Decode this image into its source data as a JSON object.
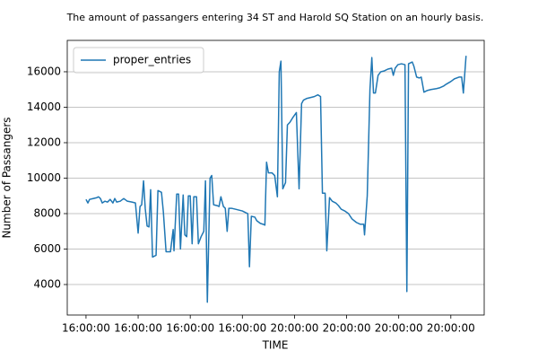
{
  "chart_data": {
    "type": "line",
    "title": "The amount of passangers entering 34 ST and Harold SQ Station on an hourly basis.",
    "xlabel": "TIME",
    "ylabel": "Number of Passangers",
    "x": [
      0,
      0.9,
      1.7,
      3.4,
      5.2,
      6.0,
      6.9,
      7.8,
      9.1,
      10.3,
      11.6,
      12.9,
      13.8,
      14.7,
      16.4,
      18.1,
      19.8,
      22.0,
      23.7,
      25.0,
      25.9,
      26.7,
      27.6,
      28.4,
      29.3,
      30.2,
      31.0,
      31.9,
      33.6,
      34.5,
      36.2,
      37.1,
      38.4,
      40.5,
      41.8,
      42.2,
      43.5,
      44.4,
      45.3,
      46.6,
      47.4,
      48.3,
      49.1,
      50.0,
      50.9,
      51.7,
      53.0,
      53.9,
      55.2,
      56.5,
      57.3,
      58.2,
      59.5,
      60.3,
      61.2,
      62.9,
      63.8,
      64.7,
      65.9,
      66.8,
      67.7,
      68.5,
      69.8,
      71.6,
      73.3,
      75.0,
      76.7,
      77.6,
      78.4,
      79.3,
      81.0,
      81.9,
      83.6,
      84.9,
      85.8,
      86.6,
      87.5,
      89.2,
      90.5,
      91.8,
      92.7,
      93.5,
      94.4,
      95.7,
      96.6,
      97.8,
      99.1,
      100.9,
      102.2,
      103.4,
      104.3,
      106.0,
      107.8,
      109.5,
      111.2,
      112.5,
      113.4,
      114.7,
      115.5,
      116.8,
      118.1,
      119.8,
      121.1,
      122.4,
      124.1,
      125.9,
      127.6,
      129.7,
      131.5,
      133.2,
      133.6,
      134.9,
      136.2,
      137.1,
      137.9,
      138.8,
      140.1,
      141.4,
      143.1,
      144.8,
      146.6,
      147.4,
      148.3,
      149.6,
      151.3,
      153.0,
      153.9,
      154.7,
      156.5,
      157.3,
      158.6,
      159.9,
      160.8,
      162.1,
      163.8,
      165.5,
      168.1,
      169.8,
      171.6,
      172.8,
      175.0,
      176.7,
      178.9,
      180.2,
      181.0,
      182.3
    ],
    "series": [
      {
        "name": "proper_entries",
        "color": "#1f77b4",
        "values": [
          8800,
          8600,
          8800,
          8850,
          8900,
          8950,
          8850,
          8600,
          8700,
          8650,
          8800,
          8600,
          8850,
          8650,
          8700,
          8850,
          8700,
          8650,
          8600,
          6900,
          8400,
          8500,
          9850,
          8300,
          7300,
          7250,
          9350,
          5550,
          5650,
          9300,
          9200,
          8100,
          5850,
          5850,
          7100,
          5900,
          9100,
          9100,
          6000,
          9050,
          6800,
          6700,
          9000,
          9000,
          6300,
          8950,
          8950,
          6300,
          6700,
          7000,
          9850,
          3000,
          10000,
          10150,
          8500,
          8450,
          8400,
          8950,
          8400,
          8300,
          7000,
          8300,
          8300,
          8250,
          8200,
          8150,
          8050,
          8000,
          5000,
          7850,
          7800,
          7600,
          7450,
          7400,
          7350,
          10900,
          10300,
          10300,
          10150,
          8950,
          16000,
          16600,
          9400,
          9750,
          13000,
          13150,
          13400,
          13700,
          9400,
          14200,
          14400,
          14500,
          14550,
          14600,
          14700,
          14600,
          9150,
          9150,
          5900,
          8900,
          8700,
          8600,
          8450,
          8250,
          8150,
          8000,
          7700,
          7500,
          7400,
          7400,
          6800,
          9000,
          15000,
          16800,
          14800,
          14800,
          15800,
          16000,
          16050,
          16150,
          16200,
          15800,
          16200,
          16400,
          16450,
          16400,
          3600,
          16450,
          16550,
          16300,
          15700,
          15650,
          15700,
          14850,
          14950,
          15000,
          15050,
          15100,
          15200,
          15300,
          15450,
          15600,
          15700,
          15700,
          14800,
          16900
        ]
      }
    ],
    "xlim": [
      -9,
      191
    ],
    "xticks": [
      {
        "value": 0,
        "label": "16:00:00"
      },
      {
        "value": 25,
        "label": "16:00:00"
      },
      {
        "value": 50,
        "label": "16:00:00"
      },
      {
        "value": 75,
        "label": "16:00:00"
      },
      {
        "value": 100,
        "label": "20:00:00"
      },
      {
        "value": 125,
        "label": "20:00:00"
      },
      {
        "value": 150,
        "label": "20:00:00"
      },
      {
        "value": 175,
        "label": "20:00:00"
      }
    ],
    "ylim": [
      2280,
      17770
    ],
    "yticks": [
      4000,
      6000,
      8000,
      10000,
      12000,
      14000,
      16000
    ],
    "grid": "y",
    "legend": "upper left"
  }
}
